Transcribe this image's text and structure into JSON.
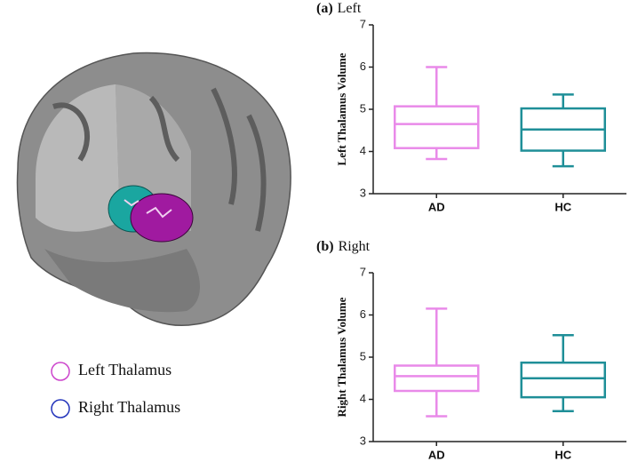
{
  "brain_legend": [
    {
      "label": "Left Thalamus",
      "color": "#cc44cc"
    },
    {
      "label": "Right Thalamus",
      "color": "#2233bb"
    }
  ],
  "chart_data": [
    {
      "type": "box",
      "panel_label": "(a)",
      "title": "Left",
      "y_label": "Left Thalamus Volume",
      "categories": [
        "AD",
        "HC"
      ],
      "colors": [
        "#e98ae9",
        "#1f8f98"
      ],
      "min": [
        3.82,
        3.65
      ],
      "q1": [
        4.08,
        4.02
      ],
      "median": [
        4.65,
        4.52
      ],
      "q3": [
        5.07,
        5.02
      ],
      "max": [
        6.0,
        5.35
      ],
      "ylim": [
        3,
        7
      ],
      "yticks": [
        3,
        4,
        5,
        6,
        7
      ]
    },
    {
      "type": "box",
      "panel_label": "(b)",
      "title": "Right",
      "y_label": "Right Thalamus Volume",
      "categories": [
        "AD",
        "HC"
      ],
      "colors": [
        "#e98ae9",
        "#1f8f98"
      ],
      "min": [
        3.6,
        3.72
      ],
      "q1": [
        4.2,
        4.05
      ],
      "median": [
        4.55,
        4.5
      ],
      "q3": [
        4.8,
        4.87
      ],
      "max": [
        6.15,
        5.52
      ],
      "ylim": [
        3,
        7
      ],
      "yticks": [
        3,
        4,
        5,
        6,
        7
      ]
    }
  ]
}
